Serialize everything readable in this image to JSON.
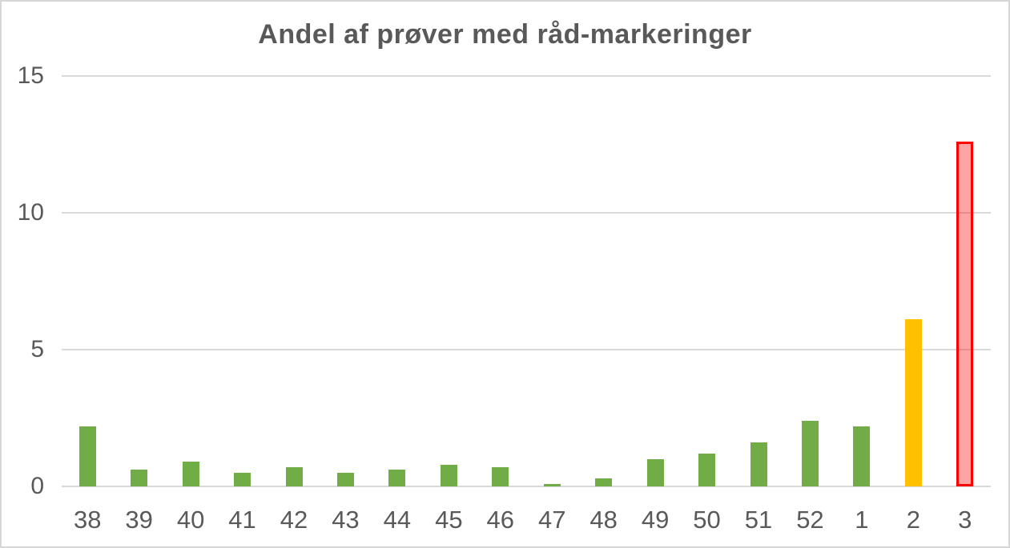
{
  "chart_data": {
    "type": "bar",
    "title": "Andel af prøver med råd-markeringer",
    "categories": [
      "38",
      "39",
      "40",
      "41",
      "42",
      "43",
      "44",
      "45",
      "46",
      "47",
      "48",
      "49",
      "50",
      "51",
      "52",
      "1",
      "2",
      "3"
    ],
    "values": [
      2.2,
      0.6,
      0.9,
      0.5,
      0.7,
      0.5,
      0.6,
      0.8,
      0.7,
      0.1,
      0.3,
      1.0,
      1.2,
      1.6,
      2.4,
      2.2,
      6.1,
      12.6
    ],
    "bar_colors": [
      "green",
      "green",
      "green",
      "green",
      "green",
      "green",
      "green",
      "green",
      "green",
      "green",
      "green",
      "green",
      "green",
      "green",
      "green",
      "green",
      "yellow",
      "red-outline"
    ],
    "palette": {
      "green": "#70AD47",
      "yellow": "#FFC000",
      "red_outline": "#FF0000",
      "red_fill": "rgba(255,0,0,0.36)"
    },
    "xlabel": "",
    "ylabel": "",
    "ylim": [
      0,
      15
    ],
    "yticks": [
      0,
      5,
      10,
      15
    ],
    "grid": true,
    "gridline_color": "#D9D9D9",
    "text_color": "#595959",
    "legend_position": "none",
    "frame_border_color": "#D6D6D6"
  }
}
